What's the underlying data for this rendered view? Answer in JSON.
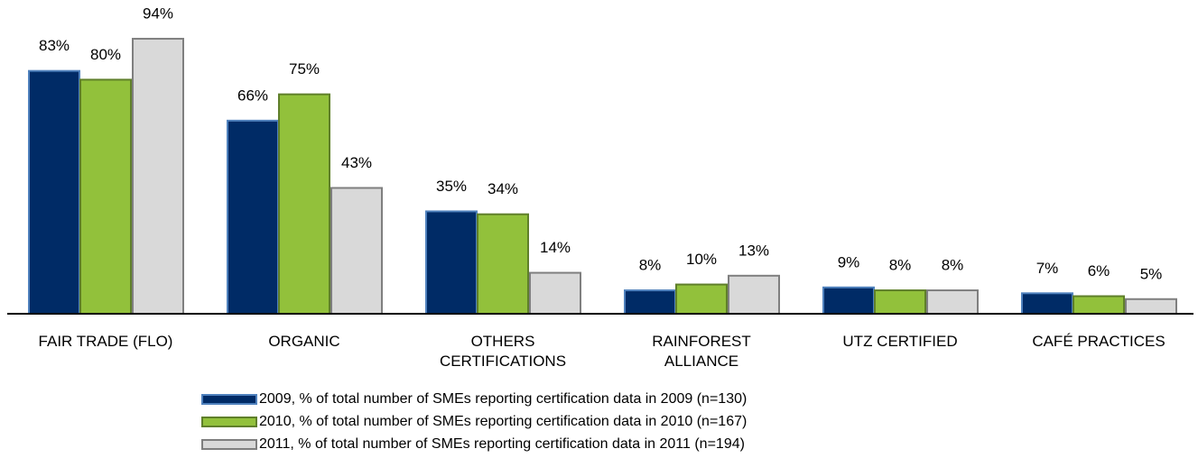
{
  "chart_data": {
    "type": "bar",
    "categories": [
      "FAIR TRADE (FLO)",
      "ORGANIC",
      "OTHERS CERTIFICATIONS",
      "RAINFOREST ALLIANCE",
      "UTZ CERTIFIED",
      "CAFÉ PRACTICES"
    ],
    "series": [
      {
        "name": "2009, % of total number of SMEs reporting certification data in 2009 (n=130)",
        "color": "#002b66",
        "stroke": "#4f81bd",
        "values": [
          83,
          66,
          35,
          8,
          9,
          7
        ],
        "value_labels": [
          "83%",
          "66%",
          "35%",
          "8%",
          "9%",
          "7%"
        ]
      },
      {
        "name": "2010, % of total number of SMEs reporting certification data in 2010 (n=167)",
        "color": "#92c13b",
        "stroke": "#5f7f2a",
        "values": [
          80,
          75,
          34,
          10,
          8,
          6
        ],
        "value_labels": [
          "80%",
          "75%",
          "34%",
          "10%",
          "8%",
          "6%"
        ]
      },
      {
        "name": "2011, % of total number of SMEs reporting certification data in 2011 (n=194)",
        "color": "#d9d9d9",
        "stroke": "#7f7f7f",
        "values": [
          94,
          43,
          14,
          13,
          8,
          5
        ],
        "value_labels": [
          "94%",
          "43%",
          "14%",
          "13%",
          "8%",
          "5%"
        ]
      }
    ]
  }
}
